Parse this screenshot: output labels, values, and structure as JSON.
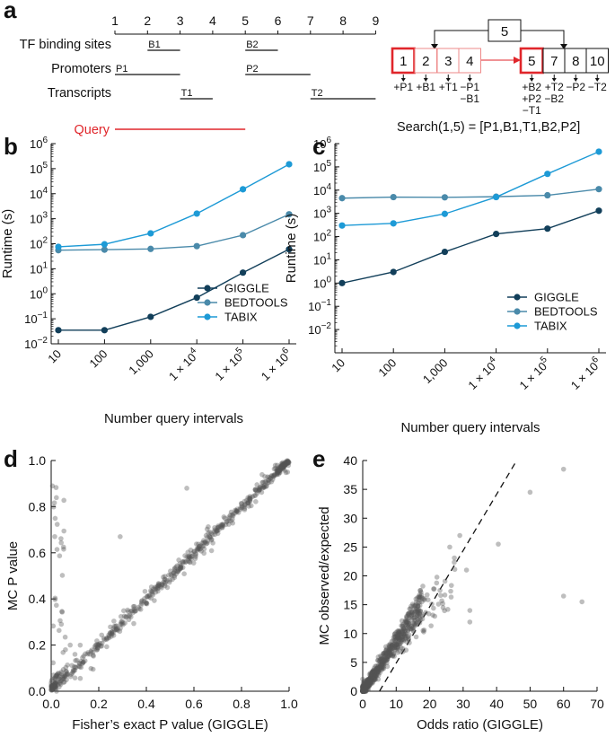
{
  "figure": {
    "panels": [
      "a",
      "b",
      "c",
      "d",
      "e"
    ]
  },
  "panel_a": {
    "letter": "a",
    "scale_ticks": [
      "1",
      "2",
      "3",
      "4",
      "5",
      "6",
      "7",
      "8",
      "9"
    ],
    "tracks": [
      {
        "label": "TF binding sites",
        "intervals": [
          {
            "name": "B1",
            "start": 2,
            "end": 3
          },
          {
            "name": "B2",
            "start": 5,
            "end": 6
          }
        ]
      },
      {
        "label": "Promoters",
        "intervals": [
          {
            "name": "P1",
            "start": 1,
            "end": 3
          },
          {
            "name": "P2",
            "start": 5,
            "end": 7
          }
        ]
      },
      {
        "label": "Transcripts",
        "intervals": [
          {
            "name": "T1",
            "start": 3,
            "end": 4
          },
          {
            "name": "T2",
            "start": 7,
            "end": 9
          }
        ]
      }
    ],
    "query": {
      "label": "Query",
      "start": 1,
      "end": 5,
      "color": "#e0262b"
    },
    "index": {
      "top_node": "5",
      "leaf_block_1": [
        "1",
        "2",
        "3",
        "4"
      ],
      "leaf_block_2": [
        "5",
        "7",
        "8",
        "10"
      ],
      "annotations_1": [
        [
          "+P1"
        ],
        [
          "+B1"
        ],
        [
          "+T1"
        ],
        [
          "−P1",
          "−B1"
        ]
      ],
      "annotations_2": [
        [
          "+B2",
          "+P2",
          "−T1"
        ],
        [
          "+T2",
          "−B2"
        ],
        [
          "−P2"
        ],
        [
          "−T2"
        ]
      ]
    },
    "search_result": "Search(1,5) = [P1,B1,T1,B2,P2]"
  },
  "chart_data": [
    {
      "panel": "b",
      "type": "line",
      "title": "",
      "xlabel": "Number query intervals",
      "ylabel": "Runtime (s)",
      "x": [
        10,
        100,
        1000,
        10000,
        100000,
        1000000
      ],
      "x_tick_labels": [
        "10",
        "100",
        "1,000",
        "1 × 10",
        "1 × 10",
        "1 × 10"
      ],
      "x_tick_sups": [
        "",
        "",
        "",
        "4",
        "5",
        "6"
      ],
      "y_scale": "log",
      "ylim_exp": [
        -2,
        6
      ],
      "y_tick_exps": [
        "−2",
        "−1",
        "0",
        "1",
        "2",
        "3",
        "4",
        "5",
        "6"
      ],
      "y_tick_base": "10",
      "series": [
        {
          "name": "GIGGLE",
          "color": "#123f5a",
          "values": [
            0.035,
            0.035,
            0.12,
            0.7,
            7,
            60
          ]
        },
        {
          "name": "BEDTOOLS",
          "color": "#4a8aaa",
          "values": [
            55,
            58,
            62,
            80,
            220,
            1500
          ]
        },
        {
          "name": "TABIX",
          "color": "#1d9ad6",
          "values": [
            75,
            95,
            260,
            1600,
            15000,
            150000
          ]
        }
      ],
      "legend_position": "bottom-right"
    },
    {
      "panel": "c",
      "type": "line",
      "title": "",
      "xlabel": "Number query intervals",
      "ylabel": "Runtime (s)",
      "x": [
        10,
        100,
        1000,
        10000,
        100000,
        1000000
      ],
      "x_tick_labels": [
        "10",
        "100",
        "1,000",
        "1 × 10",
        "1 × 10",
        "1 × 10"
      ],
      "x_tick_sups": [
        "",
        "",
        "",
        "4",
        "5",
        "6"
      ],
      "y_scale": "log",
      "ylim_exp": [
        -3,
        6
      ],
      "y_tick_exps": [
        "−2",
        "−1",
        "0",
        "1",
        "2",
        "3",
        "4",
        "5",
        "6"
      ],
      "y_tick_base": "10",
      "series": [
        {
          "name": "GIGGLE",
          "color": "#123f5a",
          "values": [
            1,
            3,
            22,
            130,
            220,
            1300
          ]
        },
        {
          "name": "BEDTOOLS",
          "color": "#4a8aaa",
          "values": [
            4500,
            5000,
            4900,
            5200,
            6000,
            11000
          ]
        },
        {
          "name": "TABIX",
          "color": "#1d9ad6",
          "values": [
            300,
            370,
            950,
            5000,
            50000,
            450000
          ]
        }
      ],
      "legend_position": "bottom-right"
    },
    {
      "panel": "d",
      "type": "scatter",
      "title": "",
      "xlabel": "Fisher’s exact P value (GIGGLE)",
      "ylabel": "MC P value",
      "xlim": [
        0,
        1
      ],
      "ylim": [
        0,
        1
      ],
      "x_ticks": [
        "0.0",
        "0.2",
        "0.4",
        "0.6",
        "0.8",
        "1.0"
      ],
      "y_ticks": [
        "0.0",
        "0.2",
        "0.4",
        "0.6",
        "0.8",
        "1.0"
      ],
      "point_color": "#555555",
      "outliers": [
        [
          0.29,
          0.67
        ],
        [
          0.57,
          0.88
        ],
        [
          0.08,
          0.2
        ],
        [
          0.1,
          0.16
        ],
        [
          0.06,
          0.18
        ],
        [
          0.01,
          0.07
        ]
      ],
      "trend": "points concentrated along y = x"
    },
    {
      "panel": "e",
      "type": "scatter",
      "title": "",
      "xlabel": "Odds ratio (GIGGLE)",
      "ylabel": "MC observed/expected",
      "xlim": [
        0,
        70
      ],
      "ylim": [
        0,
        40
      ],
      "x_ticks": [
        "0",
        "10",
        "20",
        "30",
        "40",
        "50",
        "60",
        "70"
      ],
      "y_ticks": [
        "0",
        "5",
        "10",
        "15",
        "20",
        "25",
        "30",
        "35",
        "40"
      ],
      "point_color": "#555555",
      "dashed_line": [
        [
          5,
          0
        ],
        [
          46,
          40
        ]
      ],
      "outliers": [
        [
          60,
          38.5
        ],
        [
          50,
          34.5
        ],
        [
          40.5,
          25.5
        ],
        [
          60,
          16.5
        ],
        [
          65.5,
          15.5
        ],
        [
          29,
          27
        ],
        [
          26,
          25
        ],
        [
          31,
          21
        ],
        [
          32,
          14
        ],
        [
          32,
          12
        ],
        [
          24,
          14.5
        ]
      ]
    }
  ]
}
